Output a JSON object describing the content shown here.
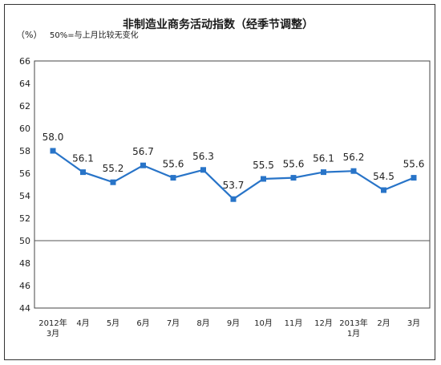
{
  "chart_data": {
    "type": "line",
    "title": "非制造业商务活动指数（经季节调整）",
    "ylabel": "（%）",
    "note": "50%=与上月比较无变化",
    "ylim": [
      44,
      66
    ],
    "yticks": [
      44,
      46,
      48,
      50,
      52,
      54,
      56,
      58,
      60,
      62,
      64,
      66
    ],
    "reference_value": 50,
    "categories": [
      [
        "2012年",
        "3月"
      ],
      [
        "4月"
      ],
      [
        "5月"
      ],
      [
        "6月"
      ],
      [
        "7月"
      ],
      [
        "8月"
      ],
      [
        "9月"
      ],
      [
        "10月"
      ],
      [
        "11月"
      ],
      [
        "12月"
      ],
      [
        "2013年",
        "1月"
      ],
      [
        "2月"
      ],
      [
        "3月"
      ]
    ],
    "values": [
      58.0,
      56.1,
      55.2,
      56.7,
      55.6,
      56.3,
      53.7,
      55.5,
      55.6,
      56.1,
      56.2,
      54.5,
      55.6
    ],
    "data_labels": [
      "58.0",
      "56.1",
      "55.2",
      "56.7",
      "55.6",
      "56.3",
      "53.7",
      "55.5",
      "55.6",
      "56.1",
      "56.2",
      "54.5",
      "55.6"
    ],
    "colors": {
      "line": "#2874c8",
      "marker": "#2874c8",
      "frame": "#333333"
    },
    "grid": false,
    "legend": "none"
  }
}
